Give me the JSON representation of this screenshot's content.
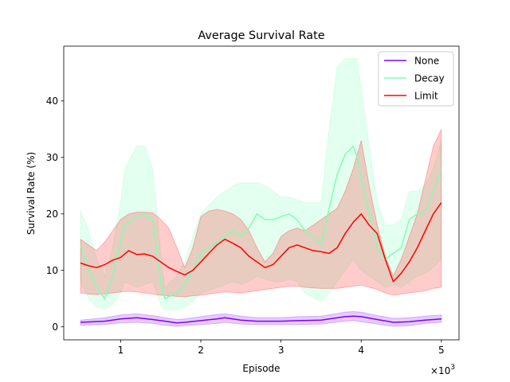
{
  "chart_data": {
    "type": "line",
    "title": "Average Survival Rate",
    "xlabel": "Episode",
    "ylabel": "Survival Rate (%)",
    "x_multiplier": "×10",
    "x_multiplier_exp": "3",
    "xlim": [
      0.29,
      5.22
    ],
    "ylim": [
      -2.3,
      49.7
    ],
    "xticks": [
      1,
      2,
      3,
      4,
      5
    ],
    "xtick_labels": [
      "1",
      "2",
      "3",
      "4",
      "5"
    ],
    "yticks": [
      0,
      10,
      20,
      30,
      40
    ],
    "ytick_labels": [
      "0",
      "10",
      "20",
      "30",
      "40"
    ],
    "grid": false,
    "legend_position": "top-right",
    "series": [
      {
        "name": "None",
        "color": "#8000ff",
        "x": [
          0.5,
          0.8,
          1.0,
          1.2,
          1.4,
          1.6,
          1.7,
          1.8,
          2.0,
          2.2,
          2.3,
          2.5,
          2.7,
          3.0,
          3.2,
          3.5,
          3.8,
          3.9,
          4.0,
          4.2,
          4.4,
          4.6,
          4.8,
          5.0
        ],
        "y": [
          0.8,
          1.0,
          1.4,
          1.6,
          1.3,
          0.9,
          0.7,
          0.8,
          1.1,
          1.4,
          1.6,
          1.2,
          1.0,
          1.0,
          1.1,
          1.2,
          1.8,
          1.9,
          1.8,
          1.3,
          0.8,
          0.9,
          1.2,
          1.4
        ],
        "lower": [
          0.3,
          0.4,
          0.7,
          0.8,
          0.6,
          0.2,
          0.1,
          0.2,
          0.4,
          0.6,
          0.8,
          0.5,
          0.4,
          0.4,
          0.4,
          0.5,
          1.0,
          1.1,
          0.9,
          0.5,
          0.1,
          0.2,
          0.6,
          0.8
        ],
        "upper": [
          1.2,
          1.6,
          2.1,
          2.3,
          2.0,
          1.5,
          1.3,
          1.4,
          1.8,
          2.2,
          2.3,
          1.9,
          1.6,
          1.6,
          1.8,
          1.9,
          2.6,
          2.7,
          2.6,
          2.0,
          1.5,
          1.6,
          1.9,
          2.1
        ]
      },
      {
        "name": "Decay",
        "color": "#80ffb4",
        "x": [
          0.5,
          0.6,
          0.7,
          0.8,
          0.9,
          1.0,
          1.05,
          1.2,
          1.3,
          1.4,
          1.5,
          1.55,
          1.7,
          1.8,
          1.9,
          2.0,
          2.2,
          2.4,
          2.5,
          2.6,
          2.7,
          2.8,
          2.9,
          3.0,
          3.1,
          3.2,
          3.3,
          3.5,
          3.6,
          3.7,
          3.8,
          3.9,
          3.95,
          4.0,
          4.1,
          4.2,
          4.3,
          4.4,
          4.5,
          4.6,
          4.7,
          4.8,
          4.9,
          5.0
        ],
        "y": [
          14.5,
          10.0,
          7.0,
          5.0,
          9.0,
          15.0,
          18.0,
          19.5,
          20.0,
          19.0,
          8.0,
          5.0,
          6.0,
          7.5,
          10.0,
          13.0,
          15.0,
          17.0,
          16.0,
          17.5,
          20.0,
          19.0,
          19.0,
          19.5,
          20.0,
          19.0,
          17.0,
          14.5,
          21.0,
          27.0,
          30.5,
          32.0,
          30.0,
          26.0,
          20.0,
          14.0,
          12.0,
          13.0,
          14.0,
          19.0,
          20.0,
          20.5,
          24.0,
          28.0
        ],
        "lower": [
          8.0,
          5.0,
          3.5,
          3.0,
          4.0,
          6.0,
          8.0,
          7.0,
          7.5,
          8.0,
          4.0,
          3.0,
          3.0,
          3.5,
          4.5,
          6.0,
          7.0,
          8.0,
          7.5,
          8.0,
          9.0,
          8.5,
          8.0,
          8.0,
          8.5,
          8.0,
          6.0,
          4.5,
          6.0,
          8.0,
          10.0,
          12.0,
          11.0,
          10.0,
          9.0,
          8.0,
          7.0,
          7.5,
          7.0,
          8.0,
          9.0,
          9.5,
          10.5,
          12.0
        ],
        "upper": [
          20.5,
          17.0,
          12.0,
          9.0,
          14.0,
          22.0,
          28.0,
          32.0,
          32.0,
          28.0,
          13.0,
          7.0,
          9.0,
          11.5,
          16.0,
          20.0,
          23.0,
          25.0,
          25.5,
          25.5,
          25.5,
          25.0,
          24.0,
          23.0,
          23.0,
          22.5,
          22.0,
          22.0,
          35.0,
          46.0,
          47.5,
          47.5,
          47.5,
          42.0,
          32.0,
          22.0,
          18.0,
          18.0,
          19.0,
          24.0,
          24.0,
          25.0,
          28.0,
          33.0
        ]
      },
      {
        "name": "Limit",
        "color": "#ff0000",
        "x": [
          0.5,
          0.6,
          0.7,
          0.8,
          0.9,
          1.0,
          1.1,
          1.2,
          1.3,
          1.4,
          1.5,
          1.6,
          1.7,
          1.8,
          1.9,
          2.0,
          2.1,
          2.2,
          2.3,
          2.4,
          2.5,
          2.6,
          2.7,
          2.8,
          2.9,
          3.0,
          3.1,
          3.2,
          3.3,
          3.4,
          3.5,
          3.6,
          3.7,
          3.8,
          3.9,
          4.0,
          4.1,
          4.2,
          4.3,
          4.4,
          4.5,
          4.6,
          4.7,
          4.8,
          4.9,
          5.0
        ],
        "y": [
          11.3,
          10.8,
          10.5,
          11.0,
          11.8,
          12.3,
          13.5,
          12.8,
          12.9,
          12.5,
          11.5,
          10.5,
          9.8,
          9.2,
          10.0,
          11.5,
          13.0,
          14.5,
          15.5,
          14.8,
          14.0,
          12.5,
          11.5,
          10.5,
          11.0,
          12.5,
          14.0,
          14.5,
          14.0,
          13.5,
          13.3,
          13.0,
          14.0,
          16.5,
          18.5,
          20.0,
          18.0,
          16.5,
          12.0,
          8.0,
          9.5,
          11.5,
          14.0,
          17.0,
          20.0,
          22.0
        ],
        "lower": [
          6.0,
          5.8,
          5.7,
          5.8,
          6.0,
          6.2,
          6.3,
          6.2,
          6.0,
          5.8,
          5.6,
          5.5,
          5.4,
          5.3,
          5.5,
          5.6,
          5.8,
          6.0,
          6.2,
          6.1,
          6.0,
          6.2,
          6.4,
          6.6,
          6.8,
          7.0,
          7.2,
          7.2,
          7.0,
          6.9,
          6.8,
          6.8,
          6.8,
          7.0,
          7.2,
          7.4,
          7.0,
          6.6,
          6.0,
          5.6,
          5.8,
          6.0,
          6.2,
          6.4,
          6.8,
          7.0
        ],
        "upper": [
          15.5,
          14.5,
          13.5,
          15.0,
          17.0,
          19.0,
          20.0,
          20.3,
          20.3,
          20.2,
          19.0,
          17.5,
          14.0,
          10.5,
          14.0,
          19.5,
          20.5,
          20.8,
          20.5,
          20.0,
          19.0,
          17.0,
          14.0,
          11.5,
          13.0,
          16.0,
          17.0,
          17.5,
          17.0,
          18.0,
          19.0,
          20.0,
          21.0,
          24.0,
          28.0,
          33.0,
          25.0,
          18.0,
          12.5,
          9.0,
          12.0,
          16.0,
          20.0,
          26.0,
          32.0,
          35.0
        ]
      }
    ]
  }
}
